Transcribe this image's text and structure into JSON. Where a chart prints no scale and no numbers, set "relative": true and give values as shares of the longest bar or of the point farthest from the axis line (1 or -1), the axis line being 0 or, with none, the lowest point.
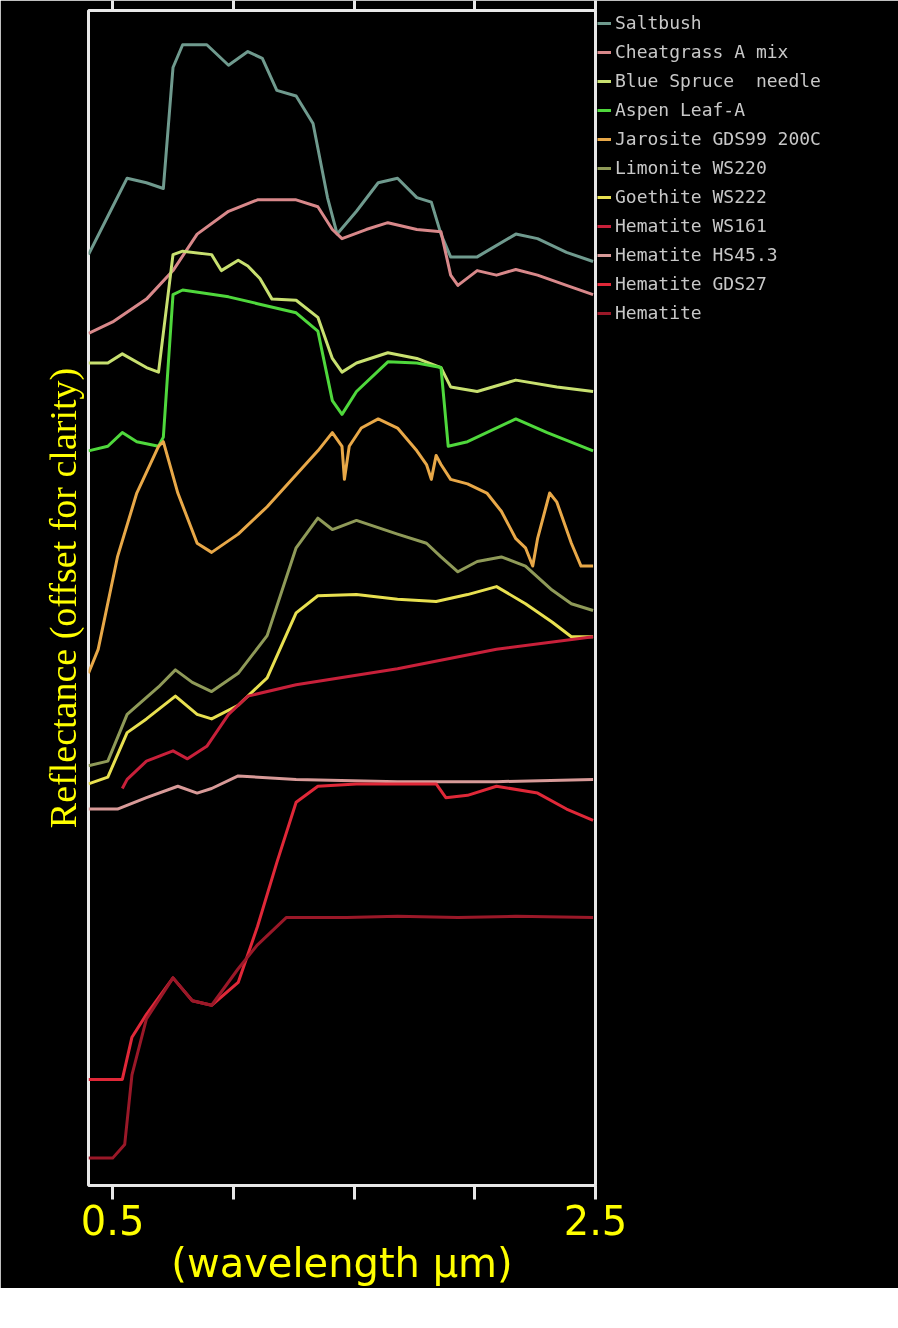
{
  "chart_data": {
    "type": "line",
    "relative": true,
    "xlabel": "(wavelength µm)",
    "ylabel": "Reflectance (offset for clarity)",
    "xlim": [
      0.4,
      2.5
    ],
    "xticks": [
      0.5,
      {
        "value": 1.0,
        "label": null
      },
      {
        "value": 1.5,
        "label": null
      },
      {
        "value": 2.0,
        "label": null
      },
      2.5
    ],
    "grid": false,
    "legend": "right",
    "marker": "none",
    "line_style": "solid",
    "tick_labels": "x",
    "series": [
      {
        "name": "Saltbush",
        "color": "#6f9a8e",
        "x": [
          0.4,
          0.5,
          0.56,
          0.64,
          0.71,
          0.75,
          0.79,
          0.89,
          0.98,
          1.06,
          1.12,
          1.18,
          1.26,
          1.33,
          1.39,
          1.43,
          1.51,
          1.6,
          1.68,
          1.76,
          1.82,
          1.86,
          1.9,
          2.01,
          2.17,
          2.26,
          2.38,
          2.49
        ],
        "values": [
          0.816,
          0.858,
          0.883,
          0.879,
          0.874,
          0.98,
          1.0,
          1.0,
          0.982,
          0.994,
          0.988,
          0.96,
          0.955,
          0.931,
          0.866,
          0.834,
          0.854,
          0.879,
          0.883,
          0.866,
          0.862,
          0.834,
          0.814,
          0.814,
          0.834,
          0.83,
          0.818,
          0.81
        ]
      },
      {
        "name": "Cheatgrass A mix",
        "color": "#d8888a",
        "x": [
          0.4,
          0.5,
          0.64,
          0.75,
          0.85,
          0.98,
          1.1,
          1.26,
          1.35,
          1.41,
          1.45,
          1.55,
          1.64,
          1.76,
          1.86,
          1.9,
          1.93,
          2.01,
          2.09,
          2.17,
          2.26,
          2.38,
          2.49
        ],
        "values": [
          0.747,
          0.757,
          0.777,
          0.802,
          0.834,
          0.854,
          0.864,
          0.864,
          0.858,
          0.838,
          0.83,
          0.838,
          0.844,
          0.838,
          0.836,
          0.798,
          0.789,
          0.802,
          0.798,
          0.803,
          0.798,
          0.789,
          0.781
        ]
      },
      {
        "name": "Blue Spruce  needle",
        "color": "#c8e070",
        "x": [
          0.4,
          0.48,
          0.54,
          0.64,
          0.69,
          0.75,
          0.79,
          0.91,
          0.95,
          1.02,
          1.06,
          1.11,
          1.16,
          1.26,
          1.35,
          1.41,
          1.45,
          1.51,
          1.64,
          1.76,
          1.86,
          1.9,
          2.01,
          2.17,
          2.34,
          2.49
        ],
        "values": [
          0.721,
          0.721,
          0.729,
          0.717,
          0.713,
          0.816,
          0.819,
          0.816,
          0.802,
          0.811,
          0.806,
          0.795,
          0.777,
          0.776,
          0.761,
          0.725,
          0.713,
          0.721,
          0.73,
          0.725,
          0.717,
          0.7,
          0.696,
          0.706,
          0.7,
          0.696
        ]
      },
      {
        "name": "Aspen Leaf-A",
        "color": "#4fd83c",
        "x": [
          0.4,
          0.48,
          0.54,
          0.6,
          0.69,
          0.71,
          0.75,
          0.79,
          0.98,
          1.1,
          1.26,
          1.35,
          1.41,
          1.45,
          1.51,
          1.64,
          1.76,
          1.86,
          1.89,
          1.97,
          2.17,
          2.3,
          2.49
        ],
        "values": [
          0.644,
          0.648,
          0.66,
          0.652,
          0.648,
          0.656,
          0.781,
          0.785,
          0.779,
          0.773,
          0.765,
          0.749,
          0.688,
          0.676,
          0.696,
          0.722,
          0.721,
          0.717,
          0.648,
          0.652,
          0.672,
          0.66,
          0.644
        ]
      },
      {
        "name": "Jarosite GDS99 200C",
        "color": "#e8a848",
        "x": [
          0.4,
          0.44,
          0.52,
          0.6,
          0.69,
          0.71,
          0.77,
          0.85,
          0.91,
          1.02,
          1.14,
          1.26,
          1.35,
          1.41,
          1.45,
          1.46,
          1.48,
          1.53,
          1.6,
          1.68,
          1.76,
          1.8,
          1.82,
          1.84,
          1.86,
          1.9,
          1.97,
          2.05,
          2.11,
          2.17,
          2.21,
          2.24,
          2.26,
          2.31,
          2.34,
          2.4,
          2.44,
          2.49
        ],
        "values": [
          0.449,
          0.47,
          0.551,
          0.607,
          0.648,
          0.652,
          0.607,
          0.563,
          0.555,
          0.571,
          0.595,
          0.623,
          0.644,
          0.66,
          0.648,
          0.619,
          0.648,
          0.664,
          0.672,
          0.664,
          0.644,
          0.632,
          0.619,
          0.64,
          0.632,
          0.619,
          0.615,
          0.607,
          0.591,
          0.567,
          0.559,
          0.543,
          0.567,
          0.607,
          0.599,
          0.563,
          0.543,
          0.543
        ]
      },
      {
        "name": "Limonite WS220",
        "color": "#8f9a58",
        "x": [
          0.4,
          0.48,
          0.56,
          0.69,
          0.76,
          0.83,
          0.91,
          1.02,
          1.14,
          1.26,
          1.35,
          1.41,
          1.51,
          1.68,
          1.8,
          1.86,
          1.93,
          2.01,
          2.11,
          2.21,
          2.32,
          2.4,
          2.49
        ],
        "values": [
          0.368,
          0.372,
          0.413,
          0.437,
          0.452,
          0.441,
          0.433,
          0.449,
          0.482,
          0.559,
          0.585,
          0.575,
          0.583,
          0.571,
          0.563,
          0.551,
          0.538,
          0.547,
          0.551,
          0.543,
          0.522,
          0.51,
          0.504
        ]
      },
      {
        "name": "Goethite WS222",
        "color": "#e8e050",
        "x": [
          0.4,
          0.48,
          0.56,
          0.64,
          0.76,
          0.85,
          0.91,
          1.02,
          1.14,
          1.26,
          1.35,
          1.51,
          1.68,
          1.84,
          1.97,
          2.09,
          2.21,
          2.32,
          2.4,
          2.49
        ],
        "values": [
          0.352,
          0.358,
          0.397,
          0.409,
          0.429,
          0.413,
          0.409,
          0.421,
          0.445,
          0.502,
          0.517,
          0.518,
          0.514,
          0.512,
          0.518,
          0.525,
          0.51,
          0.494,
          0.481,
          0.481
        ]
      },
      {
        "name": "Hematite WS161",
        "color": "#c8203a",
        "x": [
          0.54,
          0.56,
          0.64,
          0.75,
          0.81,
          0.89,
          0.98,
          1.06,
          1.26,
          1.68,
          2.09,
          2.49
        ],
        "values": [
          0.348,
          0.356,
          0.372,
          0.381,
          0.374,
          0.385,
          0.413,
          0.429,
          0.439,
          0.453,
          0.47,
          0.481
        ]
      },
      {
        "name": "Hematite HS45.3",
        "color": "#d89a98",
        "x": [
          0.4,
          0.52,
          0.64,
          0.77,
          0.85,
          0.91,
          1.02,
          1.26,
          1.68,
          2.09,
          2.49
        ],
        "values": [
          0.33,
          0.33,
          0.34,
          0.35,
          0.344,
          0.348,
          0.359,
          0.356,
          0.354,
          0.354,
          0.356
        ]
      },
      {
        "name": "Hematite GDS27",
        "color": "#e02838",
        "x": [
          0.4,
          0.54,
          0.58,
          0.64,
          0.75,
          0.83,
          0.91,
          1.02,
          1.1,
          1.18,
          1.26,
          1.35,
          1.51,
          1.68,
          1.84,
          1.88,
          1.97,
          2.09,
          2.26,
          2.38,
          2.49
        ],
        "values": [
          0.093,
          0.093,
          0.13,
          0.15,
          0.182,
          0.162,
          0.158,
          0.178,
          0.227,
          0.283,
          0.336,
          0.35,
          0.352,
          0.352,
          0.352,
          0.34,
          0.342,
          0.35,
          0.344,
          0.33,
          0.32
        ]
      },
      {
        "name": "Hematite",
        "color": "#9a1828",
        "x": [
          0.4,
          0.5,
          0.55,
          0.58,
          0.64,
          0.75,
          0.83,
          0.91,
          1.02,
          1.1,
          1.22,
          1.47,
          1.68,
          1.93,
          2.17,
          2.49
        ],
        "values": [
          0.024,
          0.024,
          0.036,
          0.097,
          0.146,
          0.182,
          0.162,
          0.158,
          0.19,
          0.211,
          0.235,
          0.235,
          0.236,
          0.235,
          0.236,
          0.235
        ]
      }
    ]
  }
}
